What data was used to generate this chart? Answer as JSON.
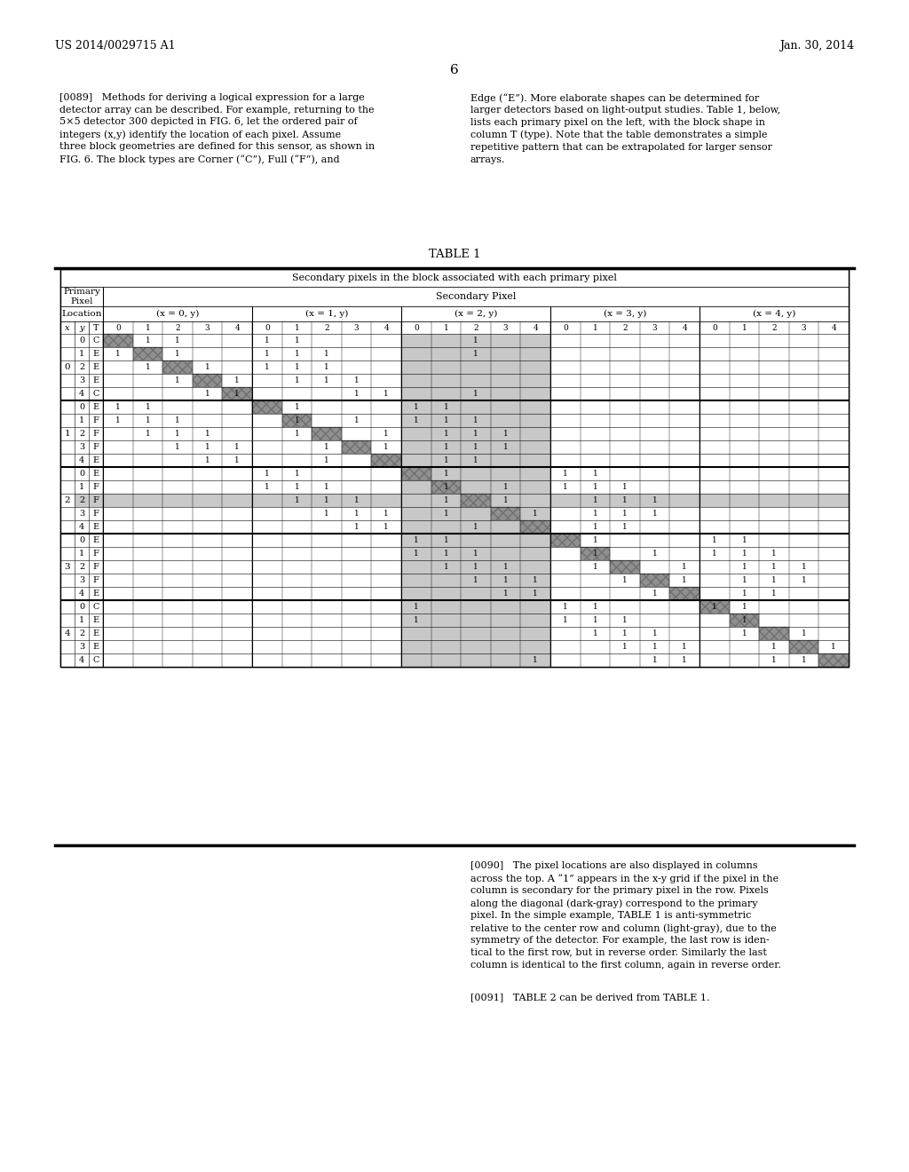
{
  "page_header_left": "US 2014/0029715 A1",
  "page_header_right": "Jan. 30, 2014",
  "page_number": "6",
  "para_0089_left": "[0089]   Methods for deriving a logical expression for a large\ndetector array can be described. For example, returning to the\n5×5 detector 300 depicted in FIG. 6, let the ordered pair of\nintegers (x,y) identify the location of each pixel. Assume\nthree block geometries are defined for this sensor, as shown in\nFIG. 6. The block types are Corner (“C”), Full (“F”), and",
  "para_0089_right": "Edge (“E”). More elaborate shapes can be determined for\nlarger detectors based on light-output studies. Table 1, below,\nlists each primary pixel on the left, with the block shape in\ncolumn T (type). Note that the table demonstrates a simple\nrepetitive pattern that can be extrapolated for larger sensor\narrays.",
  "table_title": "TABLE 1",
  "table_header_top": "Secondary pixels in the block associated with each primary pixel",
  "table_x_headers": [
    "(x = 0, y)",
    "(x = 1, y)",
    "(x = 2, y)",
    "(x = 3, y)",
    "(x = 4, y)"
  ],
  "para_0090": "[0090]   The pixel locations are also displayed in columns\nacross the top. A “1” appears in the x-y grid if the pixel in the\ncolumn is secondary for the primary pixel in the row. Pixels\nalong the diagonal (dark-gray) correspond to the primary\npixel. In the simple example, TABLE 1 is anti-symmetric\nrelative to the center row and column (light-gray), due to the\nsymmetry of the detector. For example, the last row is iden-\ntical to the first row, but in reverse order. Similarly the last\ncolumn is identical to the first column, again in reverse order.",
  "para_0091": "[0091]   TABLE 2 can be derived from TABLE 1.",
  "bg_color": "#ffffff",
  "text_color": "#000000",
  "table_rows": [
    [
      0,
      0,
      "C",
      [
        1,
        2,
        5,
        6,
        12
      ]
    ],
    [
      0,
      1,
      "E",
      [
        0,
        2,
        5,
        6,
        7,
        12
      ]
    ],
    [
      0,
      2,
      "E",
      [
        1,
        3,
        5,
        6,
        7
      ]
    ],
    [
      0,
      3,
      "E",
      [
        2,
        4,
        6,
        7,
        8
      ]
    ],
    [
      0,
      4,
      "C",
      [
        3,
        4,
        8,
        9,
        12
      ]
    ],
    [
      1,
      0,
      "E",
      [
        0,
        1,
        6,
        10,
        11
      ]
    ],
    [
      1,
      1,
      "F",
      [
        0,
        1,
        2,
        6,
        8,
        10,
        11,
        12
      ]
    ],
    [
      1,
      2,
      "F",
      [
        1,
        2,
        3,
        6,
        9,
        11,
        12,
        13
      ]
    ],
    [
      1,
      3,
      "F",
      [
        2,
        3,
        4,
        7,
        9,
        11,
        12,
        13
      ]
    ],
    [
      1,
      4,
      "E",
      [
        3,
        4,
        7,
        11,
        12
      ]
    ],
    [
      2,
      0,
      "E",
      [
        5,
        6,
        11,
        15,
        16
      ]
    ],
    [
      2,
      1,
      "F",
      [
        5,
        6,
        7,
        11,
        13,
        15,
        16,
        17
      ]
    ],
    [
      2,
      2,
      "F",
      [
        6,
        7,
        8,
        11,
        13,
        16,
        17,
        18
      ]
    ],
    [
      2,
      3,
      "F",
      [
        7,
        8,
        9,
        11,
        14,
        16,
        17,
        18
      ]
    ],
    [
      2,
      4,
      "E",
      [
        8,
        9,
        12,
        16,
        17
      ]
    ],
    [
      3,
      0,
      "E",
      [
        10,
        11,
        16,
        20,
        21
      ]
    ],
    [
      3,
      1,
      "F",
      [
        10,
        11,
        12,
        16,
        18,
        20,
        21,
        22
      ]
    ],
    [
      3,
      2,
      "F",
      [
        11,
        12,
        13,
        16,
        19,
        21,
        22,
        23
      ]
    ],
    [
      3,
      3,
      "F",
      [
        12,
        13,
        14,
        17,
        19,
        21,
        22,
        23
      ]
    ],
    [
      3,
      4,
      "E",
      [
        13,
        14,
        18,
        21,
        22
      ]
    ],
    [
      4,
      0,
      "C",
      [
        10,
        15,
        16,
        20,
        21
      ]
    ],
    [
      4,
      1,
      "E",
      [
        10,
        15,
        16,
        17,
        21
      ]
    ],
    [
      4,
      2,
      "E",
      [
        16,
        17,
        18,
        21,
        23
      ]
    ],
    [
      4,
      3,
      "E",
      [
        17,
        18,
        19,
        22,
        24
      ]
    ],
    [
      4,
      4,
      "C",
      [
        14,
        18,
        19,
        22,
        23
      ]
    ]
  ]
}
